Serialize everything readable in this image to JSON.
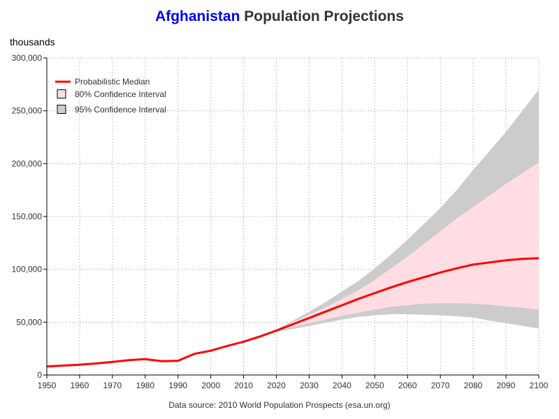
{
  "chart_data": {
    "type": "area",
    "title_country": "Afghanistan",
    "title_rest": " Population Projections",
    "ylabel": "thousands",
    "source": "Data source: 2010 World Population Prospects (esa.un.org)",
    "xlim": [
      1950,
      2100
    ],
    "ylim": [
      0,
      300000
    ],
    "x_ticks": [
      1950,
      1960,
      1970,
      1980,
      1990,
      2000,
      2010,
      2020,
      2030,
      2040,
      2050,
      2060,
      2070,
      2080,
      2090,
      2100
    ],
    "y_ticks": [
      0,
      50000,
      100000,
      150000,
      200000,
      250000,
      300000
    ],
    "y_tick_labels": [
      "0",
      "50,000",
      "100,000",
      "150,000",
      "200,000",
      "250,000",
      "300,000"
    ],
    "grid": true,
    "legend": {
      "position": "top-left",
      "items": [
        "Probabilistic Median",
        "80% Confidence Interval",
        "95% Confidence Interval"
      ]
    },
    "colors": {
      "median": "#ff0000",
      "ci80": "#ffdde3",
      "ci95": "#cccccc",
      "title_country": "#0000ee",
      "grid": "#999999"
    },
    "series": [
      {
        "name": "Probabilistic Median",
        "x": [
          1950,
          1955,
          1960,
          1965,
          1970,
          1975,
          1980,
          1985,
          1990,
          1995,
          2000,
          2005,
          2010,
          2015,
          2020,
          2025,
          2030,
          2035,
          2040,
          2045,
          2050,
          2055,
          2060,
          2065,
          2070,
          2075,
          2080,
          2085,
          2090,
          2095,
          2100
        ],
        "y": [
          8150,
          8900,
          9800,
          10900,
          12400,
          14100,
          15000,
          13000,
          13500,
          20000,
          23000,
          27500,
          31500,
          36500,
          42000,
          48000,
          54000,
          60000,
          66000,
          72000,
          77500,
          83000,
          88000,
          92500,
          97000,
          101000,
          104500,
          106500,
          108500,
          109800,
          110500
        ]
      },
      {
        "name": "80% Confidence Interval",
        "x": [
          2010,
          2015,
          2020,
          2025,
          2030,
          2035,
          2040,
          2045,
          2050,
          2055,
          2060,
          2065,
          2070,
          2075,
          2080,
          2085,
          2090,
          2095,
          2100
        ],
        "lower": [
          31500,
          36500,
          41500,
          45500,
          49000,
          52500,
          56000,
          59000,
          62000,
          64500,
          66000,
          67500,
          68000,
          68000,
          67500,
          66500,
          65000,
          63500,
          62000
        ],
        "upper": [
          31500,
          36500,
          42500,
          50000,
          57000,
          64000,
          72000,
          80000,
          90000,
          101000,
          112000,
          124000,
          136000,
          148000,
          159000,
          170000,
          181000,
          191000,
          201000
        ]
      },
      {
        "name": "95% Confidence Interval",
        "x": [
          2010,
          2015,
          2020,
          2025,
          2030,
          2035,
          2040,
          2045,
          2050,
          2055,
          2060,
          2065,
          2070,
          2075,
          2080,
          2085,
          2090,
          2095,
          2100
        ],
        "lower": [
          31500,
          36500,
          41000,
          43500,
          46500,
          49500,
          52500,
          55000,
          56500,
          57500,
          57500,
          57000,
          56500,
          55500,
          54500,
          51500,
          49000,
          46500,
          44000
        ],
        "upper": [
          31500,
          36500,
          43000,
          51500,
          60000,
          69000,
          79000,
          89000,
          101000,
          114000,
          128000,
          143000,
          158000,
          175000,
          194000,
          212000,
          230000,
          250000,
          270000
        ]
      }
    ]
  }
}
